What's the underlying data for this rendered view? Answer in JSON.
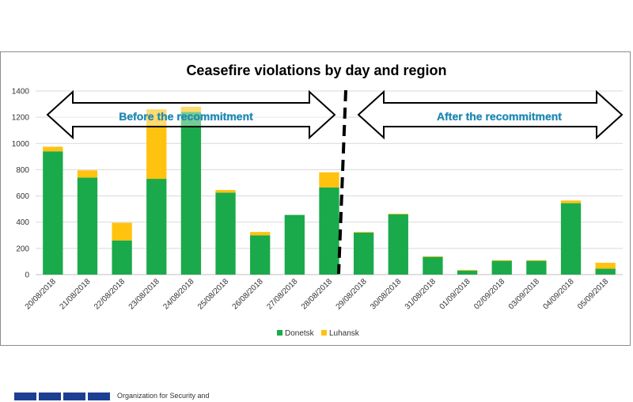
{
  "chart_data": {
    "type": "bar",
    "stacked": true,
    "title": "Ceasefire violations by day and region",
    "xlabel": "",
    "ylabel": "",
    "ylim": [
      0,
      1400
    ],
    "yticks": [
      0,
      200,
      400,
      600,
      800,
      1000,
      1200,
      1400
    ],
    "grid": true,
    "legend_position": "bottom",
    "categories": [
      "20/08/2018",
      "21/08/2018",
      "22/08/2018",
      "23/08/2018",
      "24/08/2018",
      "25/08/2018",
      "26/08/2018",
      "27/08/2018",
      "28/08/2018",
      "29/08/2018",
      "30/08/2018",
      "31/08/2018",
      "01/09/2018",
      "02/09/2018",
      "03/09/2018",
      "04/09/2018",
      "05/09/2018"
    ],
    "series": [
      {
        "name": "Donetsk",
        "color": "#1aaa4b",
        "values": [
          940,
          740,
          260,
          730,
          1240,
          625,
          300,
          455,
          665,
          320,
          460,
          135,
          30,
          105,
          105,
          545,
          45
        ]
      },
      {
        "name": "Luhansk",
        "color": "#ffc20e",
        "values": [
          35,
          55,
          135,
          530,
          40,
          20,
          25,
          0,
          115,
          5,
          5,
          5,
          5,
          5,
          5,
          20,
          45
        ]
      }
    ],
    "annotations": {
      "before_label": "Before the recommitment",
      "after_label": "After the recommitment",
      "divider_after_category": "28/08/2018"
    }
  },
  "footer": {
    "organization": "Organization for Security and"
  }
}
